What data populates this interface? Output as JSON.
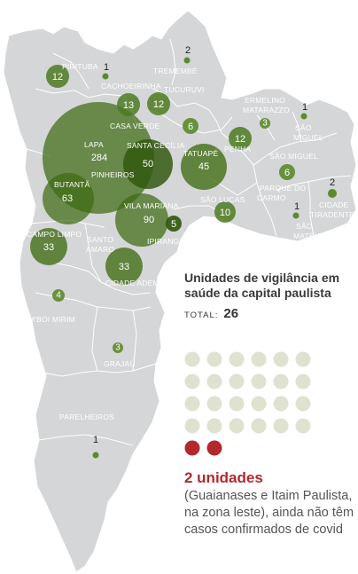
{
  "regions": [
    {
      "id": "pirituba",
      "name": "PIRITUBA",
      "count": 12
    },
    {
      "id": "cachoeirinha",
      "name": "CACHOEIRINHA",
      "count": 1
    },
    {
      "id": "tremembe",
      "name": "TREMEMBÉ",
      "count": 2
    },
    {
      "id": "tucuruvi",
      "name": "TUCURUVI",
      "count": 12
    },
    {
      "id": "casa-verde",
      "name": "CASA VERDE",
      "count": 13
    },
    {
      "id": "vila-maria",
      "name": "",
      "count": 6
    },
    {
      "id": "lapa",
      "name": "LAPA",
      "count": 284
    },
    {
      "id": "santa-cecilia",
      "name": "SANTA CECÍLIA",
      "count": 50
    },
    {
      "id": "pinheiros",
      "name": "PINHEIROS",
      "count": null
    },
    {
      "id": "butanta",
      "name": "BUTANTÃ",
      "count": 63
    },
    {
      "id": "tatuape",
      "name": "TATUAPÉ",
      "count": 45
    },
    {
      "id": "penha",
      "name": "PENHA",
      "count": 12
    },
    {
      "id": "ermelino",
      "name": "ERMELINO MATARAZZO",
      "count": 3
    },
    {
      "id": "sao-miguel",
      "name": "SÃO MIGUEL",
      "count": 1
    },
    {
      "id": "itaquera",
      "name": "ITAQUERA",
      "count": 6
    },
    {
      "id": "parque-do-carmo",
      "name": "PARQUE DO CARMO",
      "count": 1
    },
    {
      "id": "cidade-tiradentes",
      "name": "CIDADE TIRADENTES",
      "count": 2
    },
    {
      "id": "sao-mateus",
      "name": "SÃO MATEUS",
      "count": 1
    },
    {
      "id": "sao-lucas",
      "name": "SÃO LUCAS",
      "count": 10
    },
    {
      "id": "vila-mariana",
      "name": "VILA MARIANA",
      "count": 90
    },
    {
      "id": "ipiranga",
      "name": "IPIRANGA",
      "count": 5
    },
    {
      "id": "campo-limpo",
      "name": "CAMPO LIMPO",
      "count": 33
    },
    {
      "id": "santo-amaro",
      "name": "SANTO AMARO",
      "count": null
    },
    {
      "id": "cidade-ademar",
      "name": "CIDADE ADEMAR",
      "count": 33
    },
    {
      "id": "mboi-mirim",
      "name": "M'BOI MIRIM",
      "count": 4
    },
    {
      "id": "grajau",
      "name": "GRAJAÚ",
      "count": 3
    },
    {
      "id": "parelheiros",
      "name": "PARELHEIROS",
      "count": 1
    }
  ],
  "legend": {
    "title": "Unidades de vigilância em saúde da capital paulista",
    "total_label": "TOTAL:",
    "total_value": "26",
    "units_total": 26,
    "units_without_cases": 2
  },
  "note": {
    "title": "2 unidades",
    "text": "(Guaianases e Itaim Paulista, na zona leste), ainda não têm casos confirmados de covid"
  },
  "colors": {
    "map_fill": "#d4d6d7",
    "bubble": "#3f6b12",
    "dot_grey": "#dfe2cf",
    "dot_red": "#b3282d",
    "accent_red": "#b3282d"
  }
}
